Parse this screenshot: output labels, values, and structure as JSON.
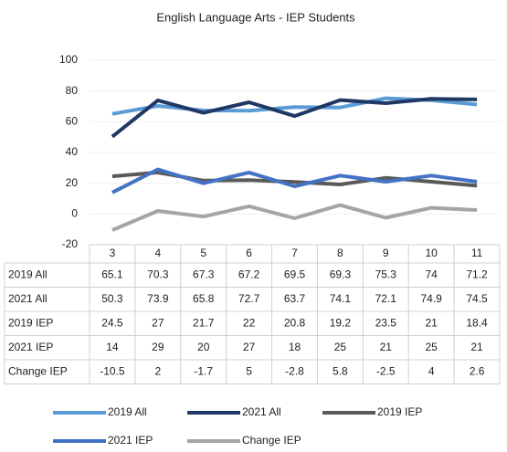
{
  "chart_data": {
    "type": "line",
    "title": "English Language Arts - IEP Students",
    "categories": [
      "3",
      "4",
      "5",
      "6",
      "7",
      "8",
      "9",
      "10",
      "11"
    ],
    "series": [
      {
        "name": "2019 All",
        "color": "#5b9bd5",
        "values": [
          65.1,
          70.3,
          67.3,
          67.2,
          69.5,
          69.3,
          75.3,
          74,
          71.2
        ]
      },
      {
        "name": "2021 All",
        "color": "#1f3864",
        "values": [
          50.3,
          73.9,
          65.8,
          72.7,
          63.7,
          74.1,
          72.1,
          74.9,
          74.5
        ]
      },
      {
        "name": "2019 IEP",
        "color": "#595959",
        "values": [
          24.5,
          27,
          21.7,
          22,
          20.8,
          19.2,
          23.5,
          21,
          18.4
        ]
      },
      {
        "name": "2021 IEP",
        "color": "#4472c4",
        "values": [
          14,
          29,
          20,
          27,
          18,
          25,
          21,
          25,
          21
        ]
      },
      {
        "name": "Change IEP",
        "color": "#a5a5a5",
        "values": [
          -10.5,
          2,
          -1.7,
          5,
          -2.8,
          5.8,
          -2.5,
          4,
          2.6
        ]
      }
    ],
    "ylim": [
      -20,
      100
    ],
    "yticks": [
      -20,
      0,
      20,
      40,
      60,
      80,
      100
    ],
    "grid": true,
    "legend": "bottom"
  }
}
